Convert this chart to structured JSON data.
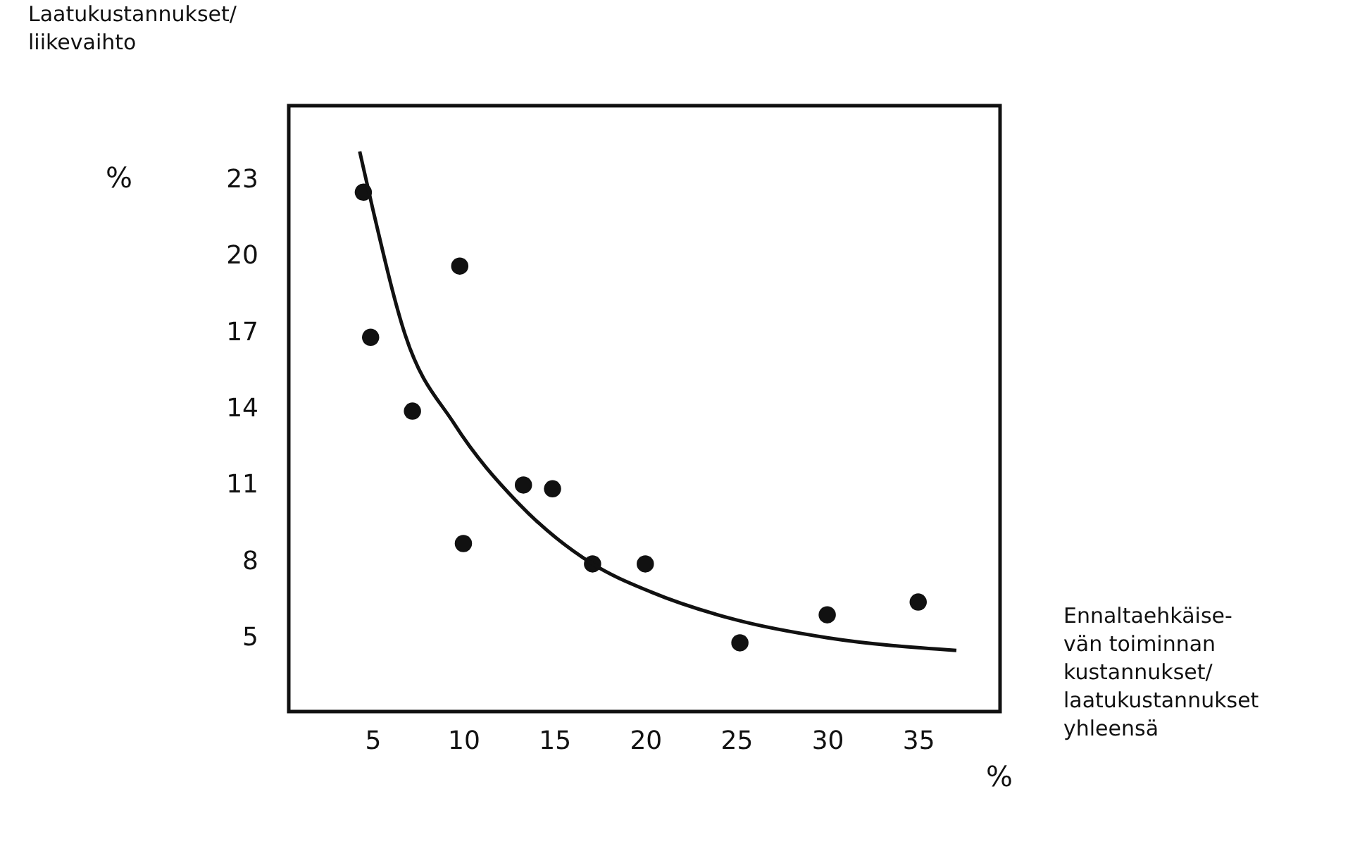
{
  "chart_data": {
    "type": "scatter",
    "ylabel": "Laatukustannukset/\nliikevaihto",
    "xlabel": "Ennaltaehkäise-\nvän toiminnan\nkustannukset/\nlaatukustannukset\nyhleensä",
    "annotations": [
      "%",
      "%"
    ],
    "xlim": [
      0.4,
      39.5
    ],
    "xticks": [
      5,
      10,
      15,
      20,
      25,
      30,
      35
    ],
    "ylim": [
      2.1,
      25.9
    ],
    "yticks": [
      5,
      8,
      11,
      14,
      17,
      20,
      23
    ],
    "grid": false,
    "legend": false,
    "marker": "circle",
    "series": [
      {
        "color": "#111111",
        "x": [
          4.5,
          9.8,
          4.9,
          7.2,
          13.3,
          14.9,
          10.0,
          17.1,
          20.0,
          25.2,
          30.0,
          35.0
        ],
        "values": [
          22.5,
          19.6,
          16.8,
          13.9,
          11.0,
          10.85,
          8.7,
          7.9,
          7.9,
          4.8,
          5.9,
          6.4
        ]
      },
      {
        "type": "line",
        "marker": "none",
        "color": "#111111",
        "x": [
          4.3,
          5.0,
          6.8,
          9.5,
          13.0,
          17.1,
          20.3,
          25.0,
          30.0,
          37.1
        ],
        "values": [
          24.1,
          21.9,
          16.9,
          13.4,
          10.3,
          7.9,
          6.8,
          5.7,
          5.0,
          4.5
        ]
      }
    ]
  }
}
